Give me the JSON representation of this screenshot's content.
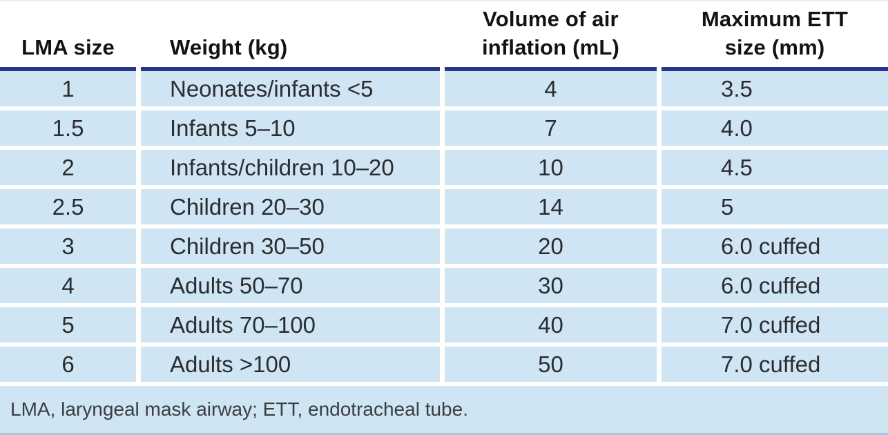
{
  "colors": {
    "cell_blue": "#cfe5f3",
    "header_rule_navy": "#26368b",
    "footer_edge_blue": "#a9c8e0",
    "header_text": "#111316",
    "body_text": "#2a2d30"
  },
  "table": {
    "columns": [
      {
        "label": "LMA size",
        "lines": [
          "LMA size"
        ]
      },
      {
        "label": "Weight (kg)",
        "lines": [
          "Weight (kg)"
        ]
      },
      {
        "label": "Volume of air inflation (mL)",
        "lines": [
          "Volume of air",
          "inflation (mL)"
        ]
      },
      {
        "label": "Maximum ETT size (mm)",
        "lines": [
          "Maximum ETT",
          "size (mm)"
        ]
      }
    ],
    "rows": [
      [
        "1",
        "Neonates/infants <5",
        "4",
        "3.5"
      ],
      [
        "1.5",
        "Infants 5–10",
        "7",
        "4.0"
      ],
      [
        "2",
        "Infants/children 10–20",
        "10",
        "4.5"
      ],
      [
        "2.5",
        "Children 20–30",
        "14",
        "5"
      ],
      [
        "3",
        "Children 30–50",
        "20",
        "6.0 cuffed"
      ],
      [
        "4",
        "Adults 50–70",
        "30",
        "6.0 cuffed"
      ],
      [
        "5",
        "Adults 70–100",
        "40",
        "7.0 cuffed"
      ],
      [
        "6",
        "Adults >100",
        "50",
        "7.0 cuffed"
      ]
    ],
    "footnote": "LMA, laryngeal mask airway; ETT, endotracheal tube."
  }
}
